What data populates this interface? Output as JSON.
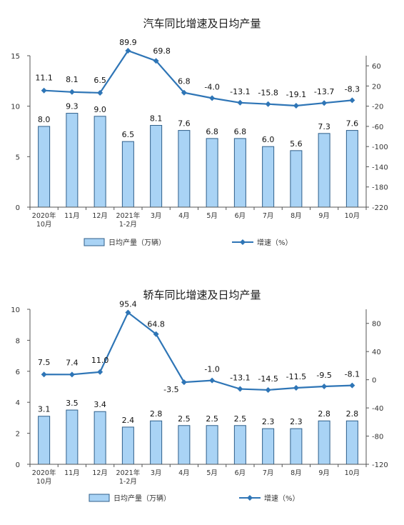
{
  "chart_data": [
    {
      "type": "bar+line",
      "title": "汽车同比增速及日均产量",
      "categories": [
        "2020年\n10月",
        "11月",
        "12月",
        "2021年\n1-2月",
        "3月",
        "4月",
        "5月",
        "6月",
        "7月",
        "8月",
        "9月",
        "10月"
      ],
      "series": [
        {
          "name": "日均产量（万辆）",
          "type": "bar",
          "axis": "left",
          "values": [
            8.0,
            9.3,
            9.0,
            6.5,
            8.1,
            7.6,
            6.8,
            6.8,
            6.0,
            5.6,
            7.3,
            7.6
          ],
          "labels": [
            "8.0",
            "9.3",
            "9.0",
            "6.5",
            "8.1",
            "7.6",
            "6.8",
            "6.8",
            "6.0",
            "5.6",
            "7.3",
            "7.6"
          ]
        },
        {
          "name": "增速（%）",
          "type": "line",
          "axis": "right",
          "values": [
            11.1,
            8.1,
            6.5,
            89.9,
            69.8,
            6.8,
            -4.0,
            -13.1,
            -15.8,
            -19.1,
            -13.7,
            -8.3
          ],
          "labels": [
            "11.1",
            "8.1",
            "6.5",
            "89.9",
            "69.8",
            "6.8",
            "-4.0",
            "-13.1",
            "-15.8",
            "-19.1",
            "-13.7",
            "-8.3"
          ]
        }
      ],
      "y_left": {
        "min": 0,
        "max": 15,
        "ticks": [
          0,
          5,
          10,
          15
        ]
      },
      "y_right": {
        "min": -220,
        "max": 80,
        "ticks": [
          60,
          20,
          -20,
          -60,
          -100,
          -140,
          -180,
          -220
        ]
      },
      "legend_placement": "bottom",
      "colors": {
        "bar": "#a9d3f5",
        "bar_stroke": "#2f5f8a",
        "line": "#2e75b6"
      }
    },
    {
      "type": "bar+line",
      "title": "轿车同比增速及日均产量",
      "categories": [
        "2020年\n10月",
        "11月",
        "12月",
        "2021年\n1-2月",
        "3月",
        "4月",
        "5月",
        "6月",
        "7月",
        "8月",
        "9月",
        "10月"
      ],
      "series": [
        {
          "name": "日均产量（万辆）",
          "type": "bar",
          "axis": "left",
          "values": [
            3.1,
            3.5,
            3.4,
            2.4,
            2.8,
            2.5,
            2.5,
            2.5,
            2.3,
            2.3,
            2.8,
            2.8
          ],
          "labels": [
            "3.1",
            "3.5",
            "3.4",
            "2.4",
            "2.8",
            "2.5",
            "2.5",
            "2.5",
            "2.3",
            "2.3",
            "2.8",
            "2.8"
          ]
        },
        {
          "name": "增速（%）",
          "type": "line",
          "axis": "right",
          "values": [
            7.5,
            7.4,
            11.0,
            95.4,
            64.8,
            -3.5,
            -1.0,
            -13.1,
            -14.5,
            -11.5,
            -9.5,
            -8.1
          ],
          "labels": [
            "7.5",
            "7.4",
            "11.0",
            "95.4",
            "64.8",
            "-3.5",
            "-1.0",
            "-13.1",
            "-14.5",
            "-11.5",
            "-9.5",
            "-8.1"
          ]
        }
      ],
      "y_left": {
        "min": 0,
        "max": 10,
        "ticks": [
          0,
          2,
          4,
          6,
          8,
          10
        ]
      },
      "y_right": {
        "min": -120,
        "max": 100,
        "ticks": [
          80,
          40,
          0,
          -40,
          -80,
          -120
        ]
      },
      "legend_placement": "bottom",
      "colors": {
        "bar": "#a9d3f5",
        "bar_stroke": "#2f5f8a",
        "line": "#2e75b6"
      }
    }
  ]
}
